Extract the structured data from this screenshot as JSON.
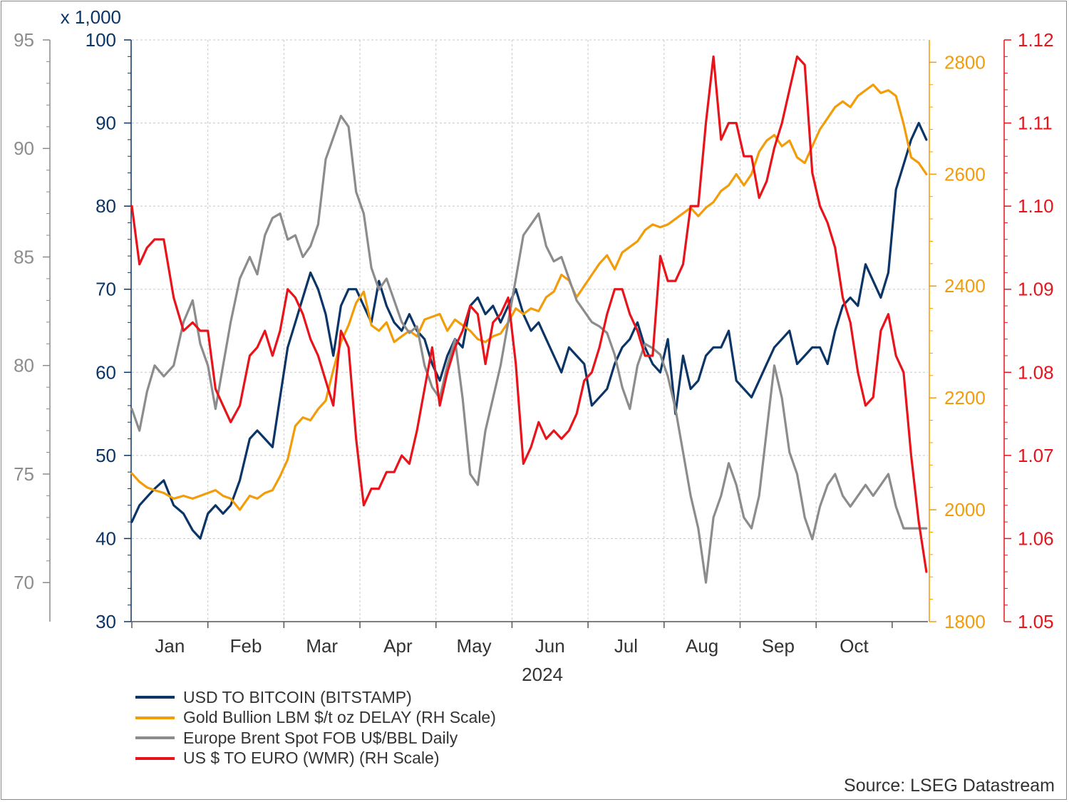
{
  "chart_data": {
    "type": "line",
    "x_axis": {
      "months": [
        "Jan",
        "Feb",
        "Mar",
        "Apr",
        "May",
        "Jun",
        "Jul",
        "Aug",
        "Sep",
        "Oct"
      ],
      "year_label": "2024"
    },
    "axes": {
      "brent": {
        "ticks": [
          "95",
          "90",
          "85",
          "80",
          "75",
          "70"
        ],
        "ylim": [
          68.2,
          95
        ],
        "color": "#8c8c8c"
      },
      "bitcoin": {
        "multiplier_label": "x 1,000",
        "ticks": [
          "100",
          "90",
          "80",
          "70",
          "60",
          "50",
          "40",
          "30"
        ],
        "ylim": [
          30,
          100
        ],
        "color": "#0b3566"
      },
      "gold": {
        "ticks": [
          "2800",
          "2600",
          "2400",
          "2200",
          "2000",
          "1800"
        ],
        "ylim": [
          1800,
          2840
        ],
        "color": "#f29c0a"
      },
      "eurusd": {
        "ticks": [
          "1.12",
          "1.11",
          "1.10",
          "1.09",
          "1.08",
          "1.07",
          "1.06",
          "1.05"
        ],
        "ylim": [
          1.05,
          1.12
        ],
        "color": "#e8141b"
      }
    },
    "x_range": [
      0,
      10.47
    ],
    "series": [
      {
        "name": "USD TO BITCOIN (BITSTAMP)",
        "axis": "bitcoin",
        "color": "#0b3566",
        "x": [
          0,
          0.1,
          0.2,
          0.3,
          0.42,
          0.55,
          0.68,
          0.8,
          0.9,
          1.0,
          1.1,
          1.2,
          1.3,
          1.42,
          1.55,
          1.65,
          1.75,
          1.85,
          1.95,
          2.05,
          2.15,
          2.25,
          2.35,
          2.45,
          2.55,
          2.65,
          2.75,
          2.85,
          2.95,
          3.05,
          3.15,
          3.25,
          3.35,
          3.45,
          3.55,
          3.65,
          3.75,
          3.85,
          3.95,
          4.05,
          4.15,
          4.25,
          4.35,
          4.45,
          4.55,
          4.65,
          4.75,
          4.85,
          4.95,
          5.05,
          5.15,
          5.25,
          5.35,
          5.45,
          5.55,
          5.65,
          5.75,
          5.85,
          5.95,
          6.05,
          6.15,
          6.25,
          6.35,
          6.45,
          6.55,
          6.65,
          6.75,
          6.85,
          6.95,
          7.05,
          7.15,
          7.25,
          7.35,
          7.45,
          7.55,
          7.65,
          7.75,
          7.85,
          7.95,
          8.05,
          8.15,
          8.25,
          8.35,
          8.45,
          8.55,
          8.65,
          8.75,
          8.85,
          8.95,
          9.05,
          9.15,
          9.25,
          9.35,
          9.45,
          9.55,
          9.65,
          9.75,
          9.85,
          9.95,
          10.05,
          10.15,
          10.25,
          10.35,
          10.45
        ],
        "values": [
          42,
          44,
          45,
          46,
          47,
          44,
          43,
          41,
          40,
          43,
          44,
          43,
          44,
          47,
          52,
          53,
          52,
          51,
          57,
          63,
          66,
          69,
          72,
          70,
          67,
          62,
          68,
          70,
          70,
          68,
          66,
          71,
          68,
          66,
          65,
          67,
          65,
          64,
          61,
          59,
          62,
          64,
          63,
          68,
          69,
          67,
          68,
          66,
          68,
          70,
          67,
          65,
          66,
          64,
          62,
          60,
          63,
          62,
          61,
          56,
          57,
          58,
          61,
          63,
          64,
          66,
          63,
          61,
          60,
          64,
          55,
          62,
          58,
          59,
          62,
          63,
          63,
          65,
          59,
          58,
          57,
          59,
          61,
          63,
          64,
          65,
          61,
          62,
          63,
          63,
          61,
          65,
          68,
          69,
          68,
          73,
          71,
          69,
          72,
          82,
          85,
          88,
          90,
          88
        ]
      },
      {
        "name": "Gold Bullion LBM $/t oz DELAY (RH Scale)",
        "axis": "gold",
        "color": "#f29c0a",
        "x": [
          0,
          0.1,
          0.2,
          0.3,
          0.42,
          0.55,
          0.68,
          0.8,
          0.9,
          1.0,
          1.1,
          1.2,
          1.3,
          1.42,
          1.55,
          1.65,
          1.75,
          1.85,
          1.95,
          2.05,
          2.15,
          2.25,
          2.35,
          2.45,
          2.55,
          2.65,
          2.75,
          2.85,
          2.95,
          3.05,
          3.15,
          3.25,
          3.35,
          3.45,
          3.55,
          3.65,
          3.75,
          3.85,
          3.95,
          4.05,
          4.15,
          4.25,
          4.35,
          4.45,
          4.55,
          4.65,
          4.75,
          4.85,
          4.95,
          5.05,
          5.15,
          5.25,
          5.35,
          5.45,
          5.55,
          5.65,
          5.75,
          5.85,
          5.95,
          6.05,
          6.15,
          6.25,
          6.35,
          6.45,
          6.55,
          6.65,
          6.75,
          6.85,
          6.95,
          7.05,
          7.15,
          7.25,
          7.35,
          7.45,
          7.55,
          7.65,
          7.75,
          7.85,
          7.95,
          8.05,
          8.15,
          8.25,
          8.35,
          8.45,
          8.55,
          8.65,
          8.75,
          8.85,
          8.95,
          9.05,
          9.15,
          9.25,
          9.35,
          9.45,
          9.55,
          9.65,
          9.75,
          9.85,
          9.95,
          10.05,
          10.15,
          10.25,
          10.35,
          10.45
        ],
        "values": [
          2065,
          2050,
          2040,
          2035,
          2030,
          2020,
          2025,
          2020,
          2025,
          2030,
          2035,
          2025,
          2020,
          2000,
          2025,
          2020,
          2030,
          2035,
          2060,
          2090,
          2150,
          2165,
          2160,
          2180,
          2195,
          2250,
          2300,
          2330,
          2370,
          2390,
          2330,
          2320,
          2335,
          2300,
          2310,
          2320,
          2310,
          2340,
          2345,
          2350,
          2320,
          2340,
          2330,
          2320,
          2305,
          2300,
          2310,
          2315,
          2335,
          2360,
          2350,
          2360,
          2355,
          2380,
          2390,
          2420,
          2410,
          2380,
          2400,
          2420,
          2440,
          2455,
          2430,
          2460,
          2470,
          2480,
          2500,
          2510,
          2505,
          2510,
          2520,
          2530,
          2540,
          2525,
          2540,
          2550,
          2570,
          2580,
          2600,
          2580,
          2600,
          2640,
          2660,
          2670,
          2650,
          2660,
          2630,
          2620,
          2650,
          2680,
          2700,
          2720,
          2730,
          2720,
          2740,
          2750,
          2760,
          2745,
          2750,
          2740,
          2690,
          2630,
          2620,
          2600
        ]
      },
      {
        "name": "Europe Brent Spot FOB U$/BBL Daily",
        "axis": "brent",
        "color": "#8c8c8c",
        "x": [
          0,
          0.1,
          0.2,
          0.3,
          0.42,
          0.55,
          0.68,
          0.8,
          0.9,
          1.0,
          1.1,
          1.2,
          1.3,
          1.42,
          1.55,
          1.65,
          1.75,
          1.85,
          1.95,
          2.05,
          2.15,
          2.25,
          2.35,
          2.45,
          2.55,
          2.65,
          2.75,
          2.85,
          2.95,
          3.05,
          3.15,
          3.25,
          3.35,
          3.45,
          3.55,
          3.65,
          3.75,
          3.85,
          3.95,
          4.05,
          4.15,
          4.25,
          4.35,
          4.45,
          4.55,
          4.65,
          4.75,
          4.85,
          4.95,
          5.05,
          5.15,
          5.25,
          5.35,
          5.45,
          5.55,
          5.65,
          5.75,
          5.85,
          5.95,
          6.05,
          6.15,
          6.25,
          6.35,
          6.45,
          6.55,
          6.65,
          6.75,
          6.85,
          6.95,
          7.05,
          7.15,
          7.25,
          7.35,
          7.45,
          7.55,
          7.65,
          7.75,
          7.85,
          7.95,
          8.05,
          8.15,
          8.25,
          8.35,
          8.45,
          8.55,
          8.65,
          8.75,
          8.85,
          8.95,
          9.05,
          9.15,
          9.25,
          9.35,
          9.45,
          9.55,
          9.65,
          9.75,
          9.85,
          9.95,
          10.05,
          10.15,
          10.25,
          10.35,
          10.45
        ],
        "values": [
          78,
          77,
          78.8,
          80,
          79.5,
          80,
          82,
          83,
          81,
          80,
          78,
          80,
          82,
          84,
          85,
          84.2,
          86,
          86.8,
          87,
          85.8,
          86,
          85,
          85.5,
          86.5,
          89.5,
          90.5,
          91.5,
          91,
          88,
          87,
          84.5,
          83.5,
          84,
          83,
          82,
          81.5,
          81.8,
          80,
          79,
          78.5,
          80,
          81.2,
          78.5,
          75,
          74.5,
          77,
          78.5,
          80,
          82,
          84,
          86,
          86.5,
          87,
          85.5,
          84.8,
          85,
          84,
          83,
          82.5,
          82,
          81.8,
          81.5,
          80.5,
          79,
          78,
          80,
          81,
          80.8,
          80.5,
          79.5,
          78,
          76,
          74,
          72.5,
          70,
          73,
          74,
          75.5,
          74.5,
          73,
          72.5,
          74,
          77,
          80,
          78.5,
          76,
          75,
          73,
          72,
          73.5,
          74.5,
          75,
          74,
          73.5,
          74,
          74.5,
          74,
          74.5,
          75,
          73.5,
          72.5,
          72.5,
          72.5,
          72.5
        ]
      },
      {
        "name": "US $ TO EURO (WMR) (RH Scale)",
        "axis": "eurusd",
        "color": "#e8141b",
        "x": [
          0,
          0.1,
          0.2,
          0.3,
          0.42,
          0.55,
          0.68,
          0.8,
          0.9,
          1.0,
          1.1,
          1.2,
          1.3,
          1.42,
          1.55,
          1.65,
          1.75,
          1.85,
          1.95,
          2.05,
          2.15,
          2.25,
          2.35,
          2.45,
          2.55,
          2.65,
          2.75,
          2.85,
          2.95,
          3.05,
          3.15,
          3.25,
          3.35,
          3.45,
          3.55,
          3.65,
          3.75,
          3.85,
          3.95,
          4.05,
          4.15,
          4.25,
          4.35,
          4.45,
          4.55,
          4.65,
          4.75,
          4.85,
          4.95,
          5.05,
          5.15,
          5.25,
          5.35,
          5.45,
          5.55,
          5.65,
          5.75,
          5.85,
          5.95,
          6.05,
          6.15,
          6.25,
          6.35,
          6.45,
          6.55,
          6.65,
          6.75,
          6.85,
          6.95,
          7.05,
          7.15,
          7.25,
          7.35,
          7.45,
          7.55,
          7.65,
          7.75,
          7.85,
          7.95,
          8.05,
          8.15,
          8.25,
          8.35,
          8.45,
          8.55,
          8.65,
          8.75,
          8.85,
          8.95,
          9.05,
          9.15,
          9.25,
          9.35,
          9.45,
          9.55,
          9.65,
          9.75,
          9.85,
          9.95,
          10.05,
          10.15,
          10.25,
          10.35,
          10.45
        ],
        "values": [
          1.1,
          1.093,
          1.095,
          1.096,
          1.096,
          1.089,
          1.085,
          1.086,
          1.085,
          1.085,
          1.078,
          1.076,
          1.074,
          1.076,
          1.082,
          1.083,
          1.085,
          1.082,
          1.085,
          1.09,
          1.089,
          1.087,
          1.084,
          1.082,
          1.079,
          1.076,
          1.085,
          1.083,
          1.072,
          1.064,
          1.066,
          1.066,
          1.068,
          1.068,
          1.07,
          1.069,
          1.073,
          1.078,
          1.083,
          1.076,
          1.08,
          1.083,
          1.085,
          1.088,
          1.087,
          1.081,
          1.086,
          1.087,
          1.089,
          1.081,
          1.069,
          1.071,
          1.074,
          1.072,
          1.073,
          1.072,
          1.073,
          1.075,
          1.079,
          1.08,
          1.083,
          1.087,
          1.09,
          1.09,
          1.087,
          1.085,
          1.082,
          1.082,
          1.094,
          1.091,
          1.091,
          1.093,
          1.1,
          1.1,
          1.11,
          1.118,
          1.108,
          1.11,
          1.11,
          1.106,
          1.106,
          1.101,
          1.103,
          1.107,
          1.11,
          1.114,
          1.118,
          1.117,
          1.104,
          1.1,
          1.098,
          1.095,
          1.089,
          1.086,
          1.08,
          1.076,
          1.077,
          1.085,
          1.087,
          1.082,
          1.08,
          1.07,
          1.062,
          1.056
        ]
      }
    ],
    "grid": true,
    "legend_position": "bottom-left",
    "source": "Source: LSEG Datastream"
  },
  "legend": [
    {
      "label": "USD TO BITCOIN (BITSTAMP)",
      "color": "#0b3566"
    },
    {
      "label": "Gold Bullion LBM $/t oz DELAY (RH Scale)",
      "color": "#f29c0a"
    },
    {
      "label": "Europe Brent Spot FOB U$/BBL Daily",
      "color": "#8c8c8c"
    },
    {
      "label": "US $ TO EURO (WMR) (RH Scale)",
      "color": "#e8141b"
    }
  ],
  "source_text": "Source: LSEG Datastream"
}
